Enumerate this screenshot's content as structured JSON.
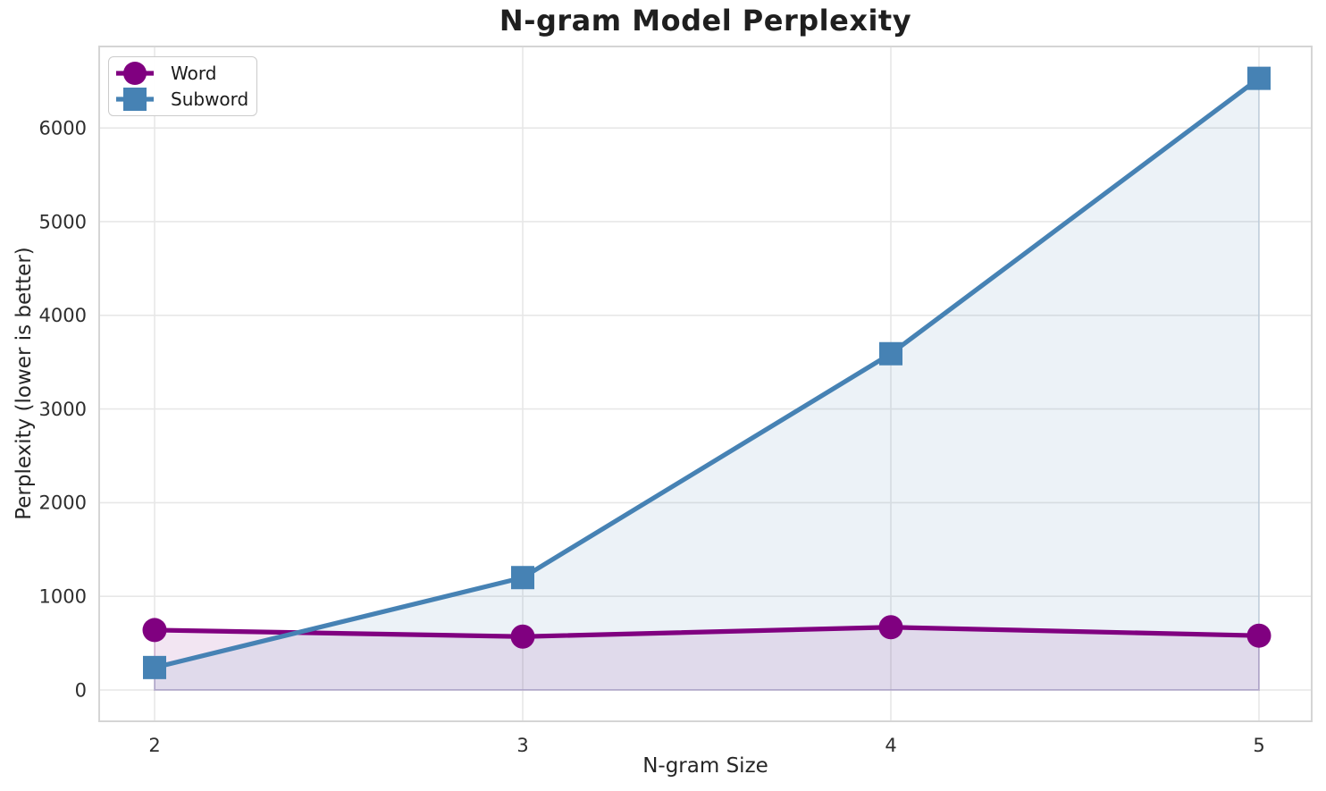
{
  "figure": {
    "background": "#ffffff",
    "text_color": "#262626",
    "grid_color": "#e7e7e7",
    "spine_color": "#d5d5d5"
  },
  "chart_data": {
    "type": "line",
    "title": "N-gram Model Perplexity",
    "xlabel": "N-gram Size",
    "ylabel": "Perplexity (lower is better)",
    "x": [
      2,
      3,
      4,
      5
    ],
    "series": [
      {
        "name": "Word",
        "color": "#800080",
        "marker": "circle",
        "values": [
          640,
          570,
          670,
          580
        ]
      },
      {
        "name": "Subword",
        "color": "#4682B4",
        "marker": "square",
        "values": [
          240,
          1200,
          3590,
          6530
        ]
      }
    ],
    "xticks": [
      2,
      3,
      4,
      5
    ],
    "yticks": [
      0,
      1000,
      2000,
      3000,
      4000,
      5000,
      6000
    ],
    "xlim": [
      1.8495,
      5.1432
    ],
    "ylim": [
      -334,
      6870
    ],
    "fill_to_zero": true,
    "fill_alpha": 0.1,
    "grid": true,
    "legend_position": "upper-left"
  }
}
